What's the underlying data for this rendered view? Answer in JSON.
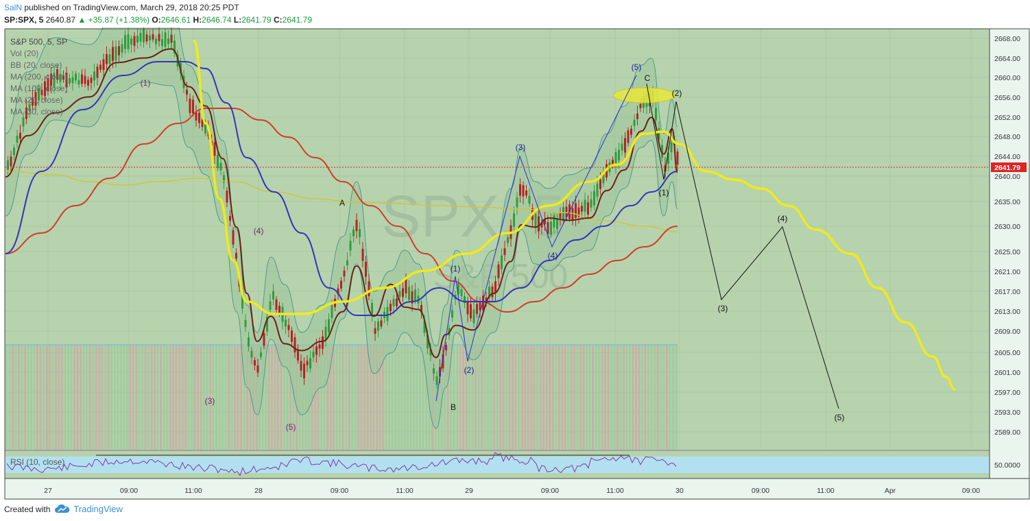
{
  "header": {
    "user": "SalN",
    "published": "published on TradingView.com, March 29, 2018 20:25 PDT",
    "symbol": "SP:SPX, 5",
    "price": "2640.87",
    "change": "▲ +35.87 (+1.38%)",
    "o_label": "O:",
    "o_value": "2646.61",
    "h_label": "H:",
    "h_value": "2646.74",
    "l_label": "L:",
    "l_value": "2641.79",
    "c_label": "C:",
    "c_value": "2641.79"
  },
  "legend": [
    "S&P 500, 5, SP",
    "Vol (20)",
    "BB (20, close)",
    "MA (200, close)",
    "MA (100, close)",
    "MA (20, close)",
    "MA (30, close)"
  ],
  "watermark": {
    "line1": "SPX, 5",
    "line2": "S&P 500"
  },
  "price_axis": {
    "ticks": [
      "2668.00",
      "2664.00",
      "2660.00",
      "2656.00",
      "2652.00",
      "2648.00",
      "2644.00",
      "2640.00",
      "2635.00",
      "2630.00",
      "2625.00",
      "2621.00",
      "2617.00",
      "2613.00",
      "2609.00",
      "2605.00",
      "2601.00",
      "2597.00",
      "2593.00",
      "2589.00"
    ],
    "last_price": "2641.79"
  },
  "rsi": {
    "label": "RSI (10, close)",
    "level": "50.0000"
  },
  "time_axis": [
    "27",
    "09:00",
    "11:00",
    "28",
    "09:00",
    "11:00",
    "29",
    "09:00",
    "11:00",
    "30",
    "09:00",
    "11:00",
    "Apr",
    "09:00"
  ],
  "annotations": {
    "purple": [
      "(1)",
      "(4)",
      "(3)",
      "(5)"
    ],
    "blue": [
      "(1)",
      "(2)",
      "(3)",
      "(4)",
      "(5)"
    ],
    "black": [
      "A",
      "B",
      "C",
      "(1)",
      "(2)",
      "(3)",
      "(4)",
      "(5)"
    ]
  },
  "colors": {
    "background": "#b6d3ad",
    "grid": "#a9c8a2",
    "candle_up": "#2e9e3e",
    "candle_down": "#b32424",
    "bb": "#4a9a8e",
    "ma200": "#d2c43a",
    "ma100": "#d23b2b",
    "ma20": "#3333bb",
    "ma30": "#6b2016",
    "projection": "#f0ea1a",
    "rsi_line": "#7a3aa8",
    "rsi_band": "#b3e0f0",
    "last_price": "#e02424"
  },
  "footer": {
    "created": "Created with",
    "brand": "TradingView"
  }
}
